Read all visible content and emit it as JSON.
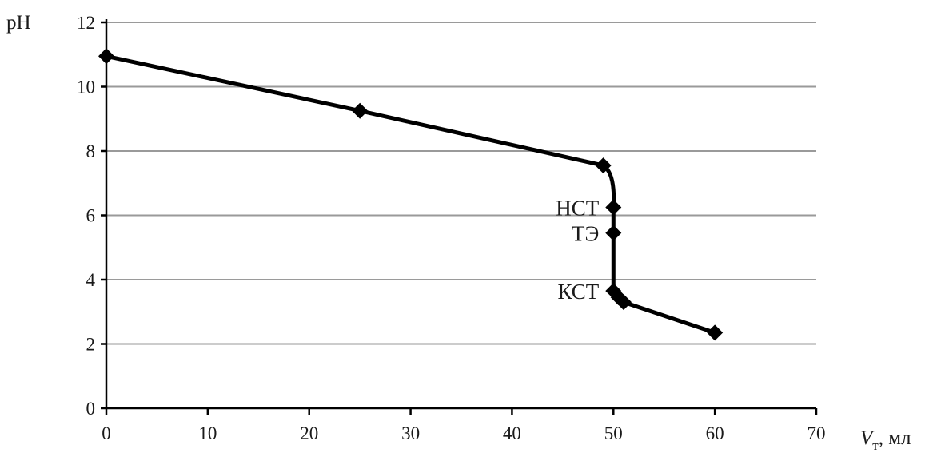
{
  "chart_data": {
    "type": "line",
    "title": "",
    "xlabel_symbol": "V",
    "xlabel_subscript": "т",
    "xlabel_unit": ", мл",
    "ylabel": "pH",
    "xlim": [
      0,
      70
    ],
    "ylim": [
      0,
      12
    ],
    "xticks": [
      0,
      10,
      20,
      30,
      40,
      50,
      60,
      70
    ],
    "yticks": [
      0,
      2,
      4,
      6,
      8,
      10,
      12
    ],
    "grid": {
      "horizontal": true,
      "vertical": false
    },
    "series": [
      {
        "x": [
          0,
          25,
          49,
          50,
          50,
          50,
          50.5,
          51,
          60
        ],
        "y": [
          10.95,
          9.25,
          7.55,
          6.25,
          5.45,
          3.65,
          3.45,
          3.3,
          2.35
        ]
      }
    ],
    "annotations": [
      {
        "text": "НСТ",
        "x": 50,
        "y": 6.25
      },
      {
        "text": "ТЭ",
        "x": 50,
        "y": 5.45
      },
      {
        "text": "КСТ",
        "x": 50,
        "y": 3.65
      }
    ],
    "colors": {
      "line": "#000000",
      "grid": "#9a9a9a",
      "text": "#1a1a1a"
    }
  }
}
